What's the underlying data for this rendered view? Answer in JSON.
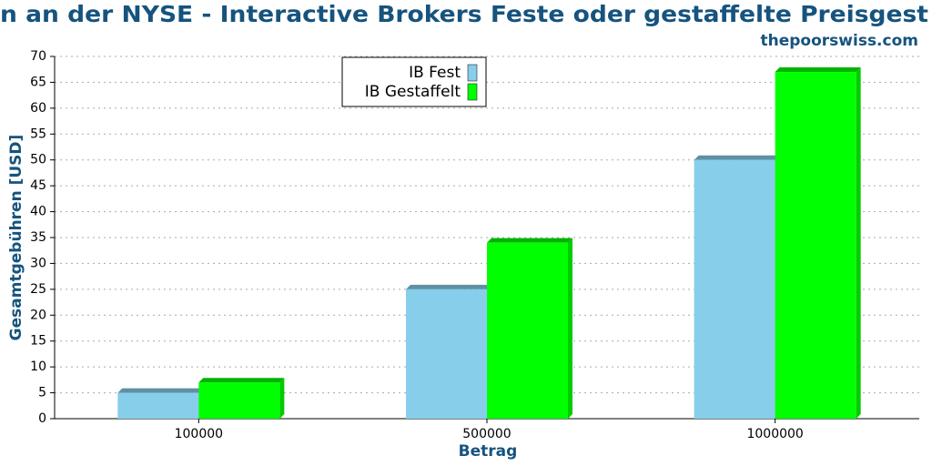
{
  "chart_data": {
    "type": "bar",
    "title": "n an der NYSE - Interactive Brokers Feste oder gestaffelte Preisgest",
    "subtitle": "thepoorswiss.com",
    "x_label": "Betrag",
    "y_label": "Gesamtgebühren [USD]",
    "categories": [
      "100000",
      "500000",
      "1000000"
    ],
    "series": [
      {
        "name": "IB Fest",
        "color": "#87ceeb",
        "values": [
          5,
          25,
          50
        ]
      },
      {
        "name": "IB Gestaffelt",
        "color": "#00ff00",
        "values": [
          7,
          34,
          67
        ]
      }
    ],
    "ylim": [
      0,
      70
    ],
    "yticks": [
      0,
      5,
      10,
      15,
      20,
      25,
      30,
      35,
      40,
      45,
      50,
      55,
      60,
      65,
      70
    ],
    "grid": true,
    "legend": "top-center"
  }
}
